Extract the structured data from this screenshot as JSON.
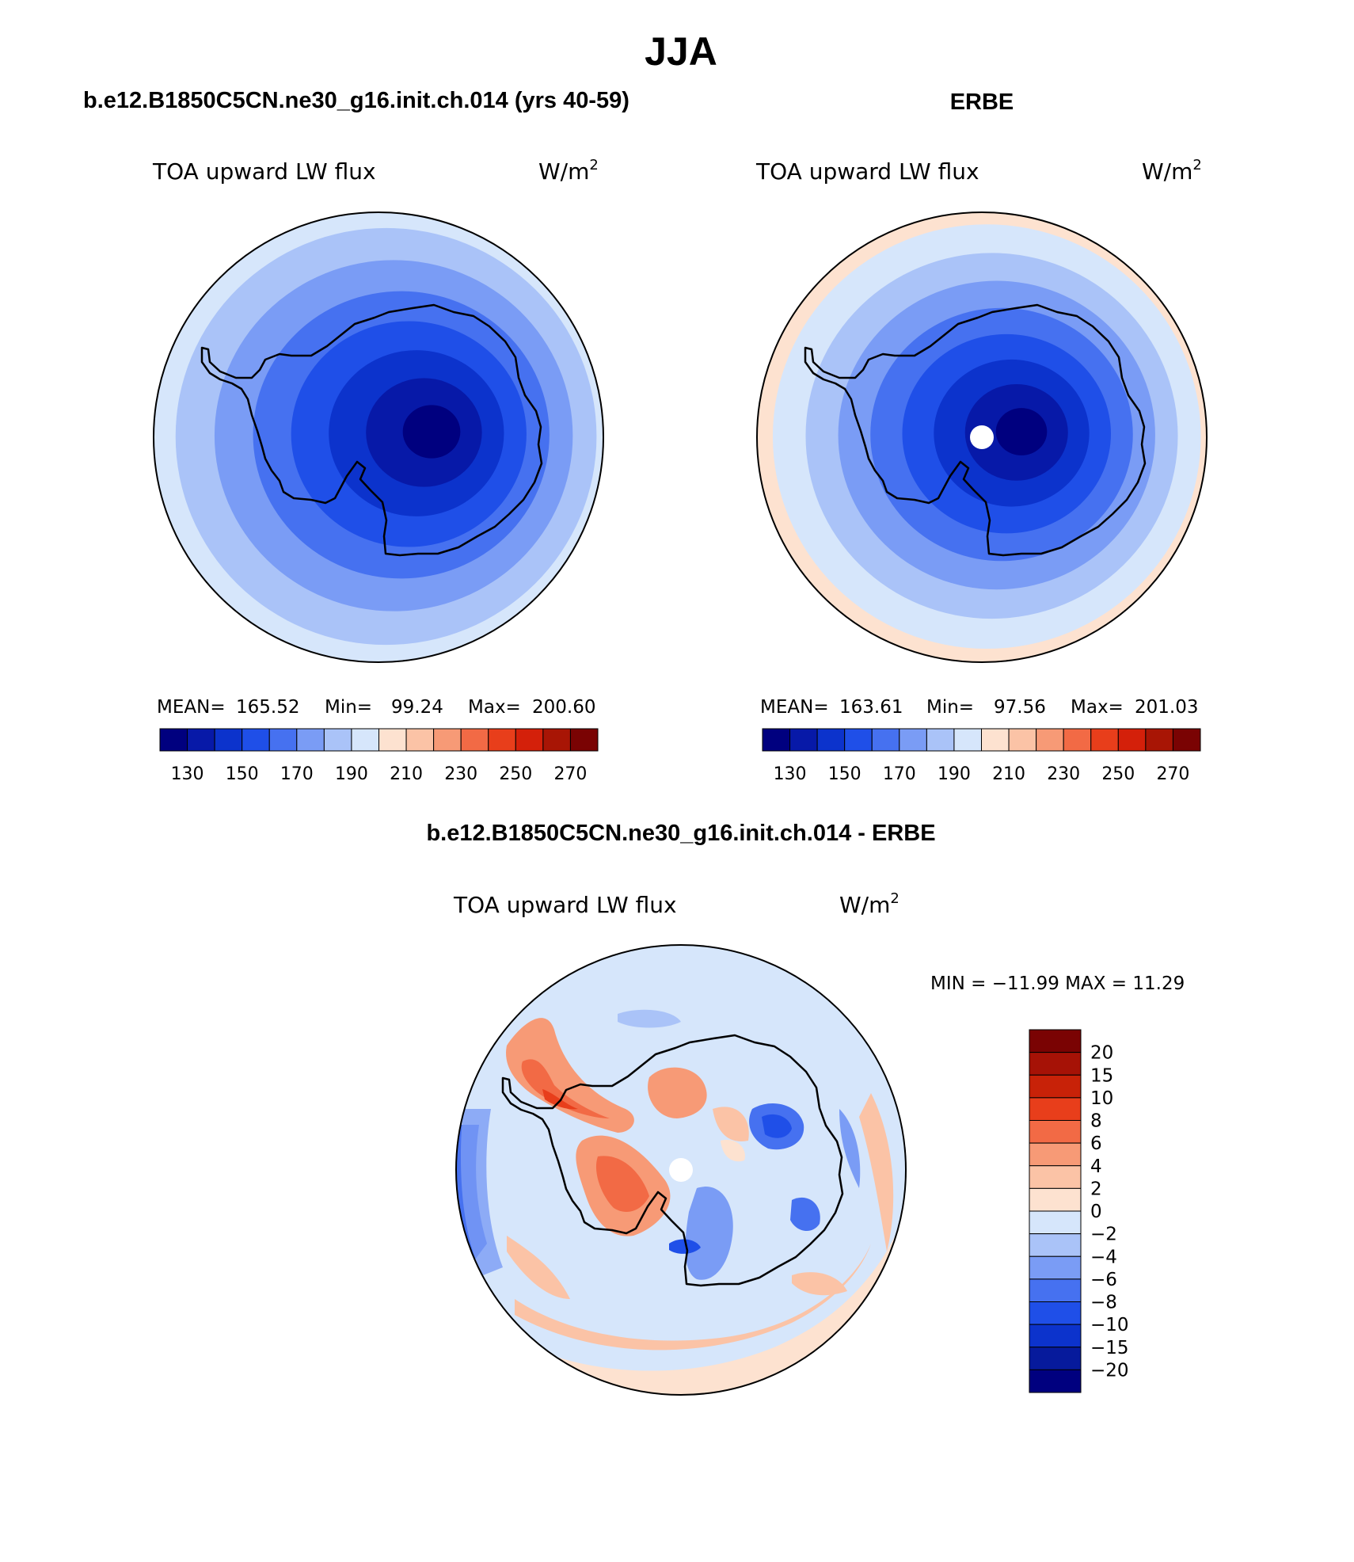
{
  "title": "JJA",
  "chart_data": [
    {
      "type": "heatmap",
      "projection": "south-polar-stereographic",
      "case_title": "b.e12.B1850C5CN.ne30_g16.init.ch.014 (yrs 40-59)",
      "variable": "TOA upward LW flux",
      "units_base": "W/m",
      "units_exp": "2",
      "mean_label": "MEAN=",
      "mean": "165.52",
      "min_label": "Min=",
      "min": "99.24",
      "max_label": "Max=",
      "max": "200.60",
      "levels": [
        130,
        140,
        150,
        160,
        170,
        180,
        190,
        200,
        210,
        220,
        230,
        240,
        250,
        260,
        270
      ],
      "tick_labels": [
        "130",
        "150",
        "170",
        "190",
        "210",
        "230",
        "250",
        "270"
      ],
      "field_bands_outer_to_inner": [
        190,
        180,
        170,
        160,
        150,
        140,
        130,
        120
      ]
    },
    {
      "type": "heatmap",
      "projection": "south-polar-stereographic",
      "case_title": "ERBE",
      "variable": "TOA upward LW flux",
      "units_base": "W/m",
      "units_exp": "2",
      "mean_label": "MEAN=",
      "mean": "163.61",
      "min_label": "Min=",
      "min": "97.56",
      "max_label": "Max=",
      "max": "201.03",
      "levels": [
        130,
        140,
        150,
        160,
        170,
        180,
        190,
        200,
        210,
        220,
        230,
        240,
        250,
        260,
        270
      ],
      "tick_labels": [
        "130",
        "150",
        "170",
        "190",
        "210",
        "230",
        "250",
        "270"
      ],
      "field_bands_outer_to_inner": [
        200,
        190,
        180,
        170,
        160,
        150,
        140,
        130,
        120
      ],
      "missing_pole": true
    },
    {
      "type": "heatmap",
      "projection": "south-polar-stereographic",
      "case_title": "b.e12.B1850C5CN.ne30_g16.init.ch.014 - ERBE",
      "variable": "TOA upward LW flux",
      "units_base": "W/m",
      "units_exp": "2",
      "minmax_text": "MIN = −11.99 MAX =  11.29",
      "min": -11.99,
      "max": 11.29,
      "levels": [
        -20,
        -15,
        -10,
        -8,
        -6,
        -4,
        -2,
        0,
        2,
        4,
        6,
        8,
        10,
        15,
        20
      ],
      "tick_labels": [
        "20",
        "15",
        "10",
        "8",
        "6",
        "4",
        "2",
        "0",
        "−2",
        "−4",
        "−6",
        "−8",
        "−10",
        "−15",
        "−20"
      ],
      "missing_pole": true
    }
  ],
  "colors": {
    "abs_scale": [
      "#00007f",
      "#0719a8",
      "#0c33cc",
      "#1f4fe8",
      "#4671f0",
      "#7a9cf5",
      "#aac3f8",
      "#d6e6fb",
      "#fde2d0",
      "#fbc3a6",
      "#f79a76",
      "#f26a45",
      "#e83e1b",
      "#d4200a",
      "#a81505",
      "#7a0303"
    ],
    "diff_scale": [
      "#00007f",
      "#061a9c",
      "#0c33cc",
      "#1f4fe8",
      "#4671f0",
      "#7a9cf5",
      "#aac3f8",
      "#d6e6fb",
      "#fde2d0",
      "#fbc3a6",
      "#f79a76",
      "#f26a45",
      "#e83e1b",
      "#c82208",
      "#a61206",
      "#7a0303"
    ],
    "coast": "#000000"
  }
}
